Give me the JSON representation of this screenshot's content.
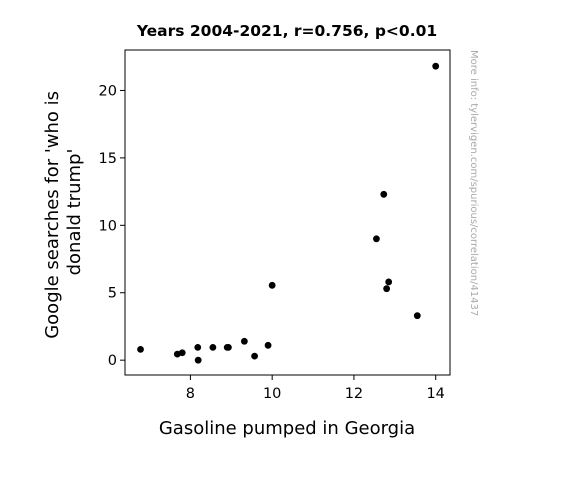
{
  "chart_data": {
    "type": "scatter",
    "title": "Years 2004-2021, r=0.756, p<0.01",
    "xlabel": "Gasoline pumped in Georgia",
    "ylabel_lines": [
      "Google searches for 'who is",
      "donald trump'"
    ],
    "xlim": [
      6.4,
      14.35
    ],
    "ylim": [
      -1.1,
      23.0
    ],
    "xticks": [
      8,
      10,
      12,
      14
    ],
    "yticks": [
      0,
      5,
      10,
      15,
      20
    ],
    "grid": false,
    "marker_color": "#000000",
    "points": [
      {
        "x": 6.78,
        "y": 0.8
      },
      {
        "x": 7.68,
        "y": 0.45
      },
      {
        "x": 7.8,
        "y": 0.55
      },
      {
        "x": 8.18,
        "y": 0.95
      },
      {
        "x": 8.19,
        "y": 0.0
      },
      {
        "x": 8.55,
        "y": 0.95
      },
      {
        "x": 8.9,
        "y": 0.95
      },
      {
        "x": 8.93,
        "y": 0.95
      },
      {
        "x": 9.32,
        "y": 1.4
      },
      {
        "x": 9.57,
        "y": 0.3
      },
      {
        "x": 9.9,
        "y": 1.1
      },
      {
        "x": 10.0,
        "y": 5.55
      },
      {
        "x": 12.55,
        "y": 9.0
      },
      {
        "x": 12.73,
        "y": 12.3
      },
      {
        "x": 12.8,
        "y": 5.3
      },
      {
        "x": 12.85,
        "y": 5.8
      },
      {
        "x": 13.55,
        "y": 3.3
      },
      {
        "x": 14.0,
        "y": 21.8
      }
    ]
  },
  "watermark": "More info: tylervigen.com/spurious/correlation/41437"
}
